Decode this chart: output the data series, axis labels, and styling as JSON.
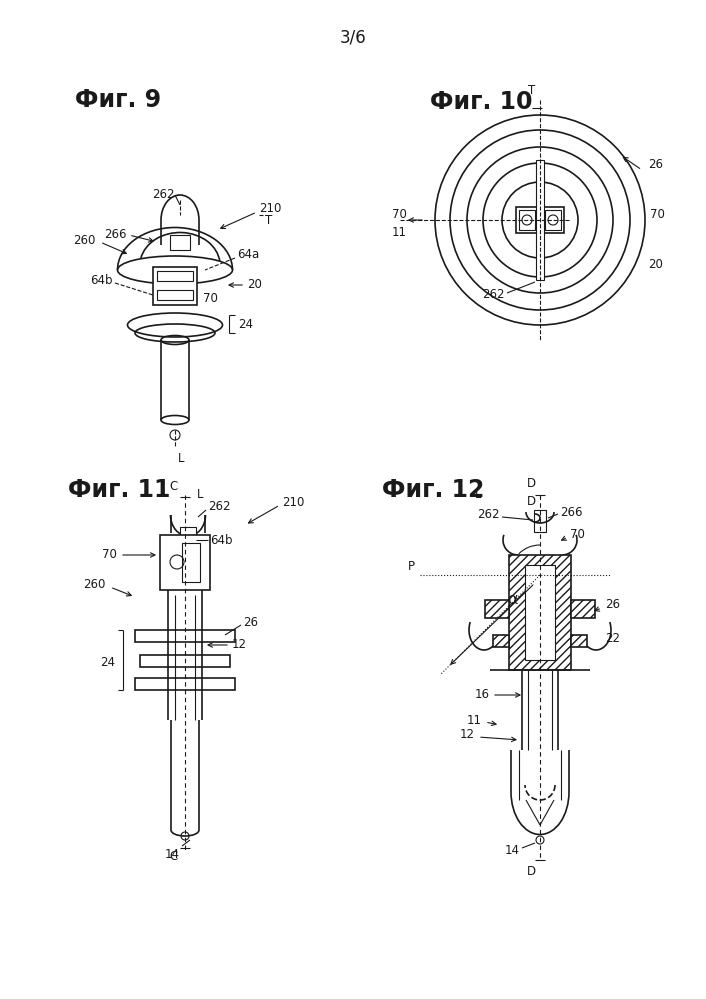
{
  "page_label": "3/6",
  "fig9_title": "Фиг. 9",
  "fig10_title": "Фиг. 10",
  "fig11_title": "Фиг. 11",
  "fig12_title": "Фиг. 12",
  "background_color": "#ffffff",
  "line_color": "#1a1a1a",
  "label_color": "#1a1a1a",
  "font_size_title": 17,
  "font_size_label": 8.5,
  "font_size_page": 12
}
